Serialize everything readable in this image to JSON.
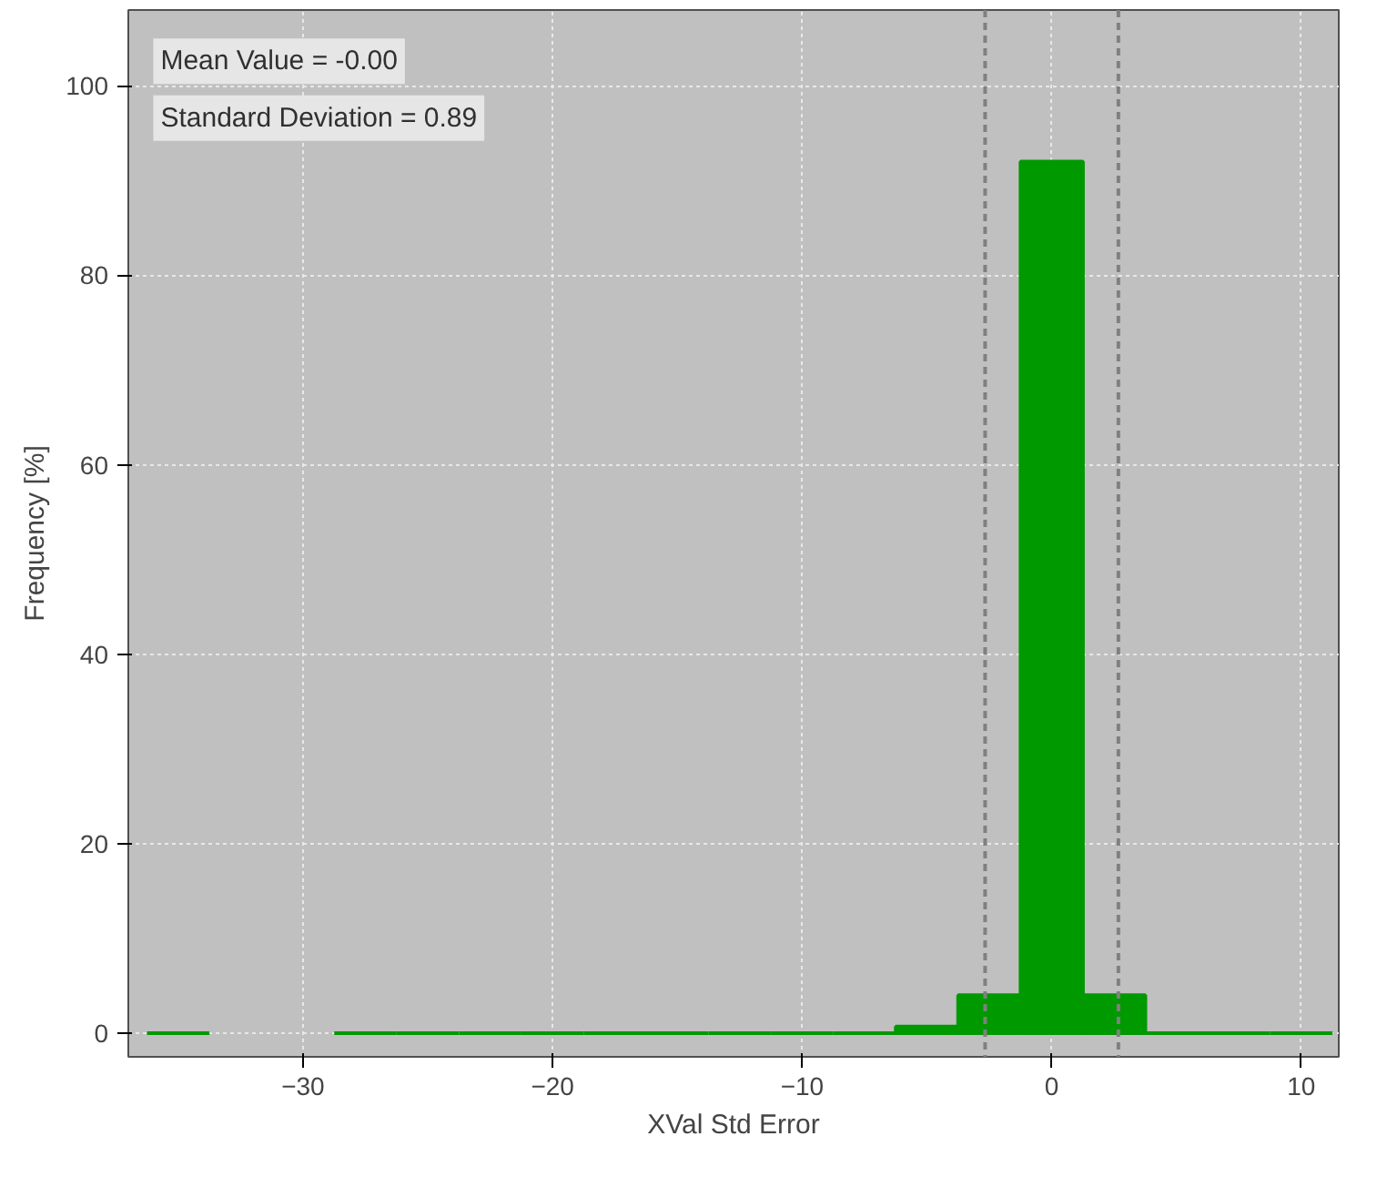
{
  "chart_data": {
    "type": "histogram",
    "xlabel": "XVal Std Error",
    "ylabel": "Frequency [%]",
    "bins": [
      -36.25,
      -33.75,
      -31.25,
      -28.75,
      -26.25,
      -23.75,
      -21.25,
      -18.75,
      -16.25,
      -13.75,
      -11.25,
      -8.75,
      -6.25,
      -3.75,
      -1.25,
      1.25,
      3.75,
      6.25,
      8.75,
      11.25
    ],
    "values": [
      0,
      null,
      null,
      0,
      0,
      0,
      0,
      0,
      0,
      0,
      0,
      0,
      0.7,
      4,
      92,
      4,
      0,
      0,
      0
    ],
    "color": "#009900",
    "xlim": [
      -37,
      11.5
    ],
    "ylim": [
      -2.5,
      108
    ],
    "xticks": [
      -30,
      -20,
      -10,
      0,
      10
    ],
    "yticks": [
      0,
      20,
      40,
      60,
      80,
      100
    ],
    "grid": true,
    "ref_lines": [
      {
        "axis": "x",
        "value": -2.67,
        "color": "#808080",
        "line_style": "dashed"
      },
      {
        "axis": "x",
        "value": 2.67,
        "color": "#808080",
        "line_style": "dashed"
      }
    ],
    "annotations": [
      "Mean Value = -0.00",
      "Standard Deviation = 0.89"
    ]
  }
}
